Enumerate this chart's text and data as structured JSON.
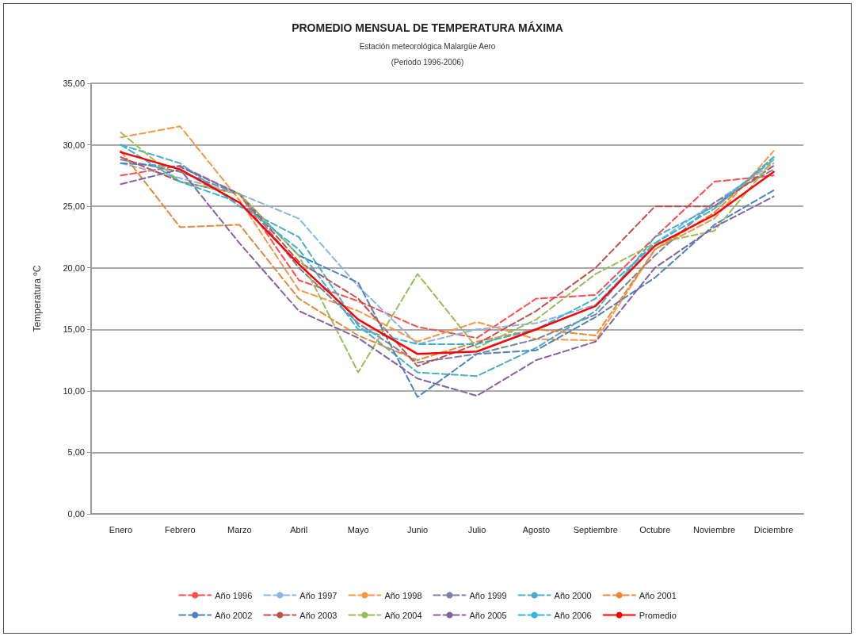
{
  "chart_data": {
    "type": "line",
    "title": "PROMEDIO MENSUAL DE TEMPERATURA MÁXIMA",
    "subtitle": "Estación meteorológica Malargüe Aero\n(Periodo 1996-2006)",
    "ylabel": "Temperatura ºC",
    "categories": [
      "Enero",
      "Febrero",
      "Marzo",
      "Abril",
      "Mayo",
      "Junio",
      "Julio",
      "Agosto",
      "Septiembre",
      "Octubre",
      "Noviembre",
      "Diciembre"
    ],
    "series": [
      {
        "name": "Año 1996",
        "color": "#ff4b4b",
        "line_style": "dashed",
        "values": [
          27.5,
          28.3,
          26.0,
          19.0,
          17.3,
          15.2,
          14.3,
          17.5,
          17.8,
          22.5,
          27.0,
          27.5
        ]
      },
      {
        "name": "Año 1997",
        "color": "#8eb4e3",
        "line_style": "dashed",
        "values": [
          28.5,
          27.3,
          26.0,
          24.0,
          18.5,
          13.8,
          15.0,
          15.5,
          17.0,
          22.0,
          25.3,
          28.5
        ]
      },
      {
        "name": "Año 1998",
        "color": "#f79646",
        "line_style": "dashed",
        "values": [
          30.6,
          31.5,
          25.5,
          18.2,
          16.5,
          14.0,
          15.6,
          14.2,
          14.1,
          21.5,
          24.0,
          29.5
        ]
      },
      {
        "name": "Año 1999",
        "color": "#7f7f9f",
        "line_style": "dashed",
        "values": [
          28.8,
          27.8,
          26.0,
          20.0,
          15.5,
          12.3,
          13.0,
          14.2,
          16.2,
          21.0,
          25.3,
          28.0
        ]
      },
      {
        "name": "Año 2000",
        "color": "#4bacc6",
        "line_style": "dashed",
        "values": [
          30.0,
          28.5,
          25.0,
          22.5,
          15.3,
          11.5,
          11.2,
          13.5,
          16.5,
          22.5,
          25.0,
          28.8
        ]
      },
      {
        "name": "Año 2001",
        "color": "#e8883a",
        "line_style": "dashed",
        "values": [
          29.5,
          23.3,
          23.5,
          17.5,
          14.5,
          12.5,
          14.0,
          15.0,
          14.5,
          21.5,
          24.5,
          29.0
        ]
      },
      {
        "name": "Año 2002",
        "color": "#4f81bd",
        "line_style": "dashed",
        "values": [
          28.5,
          28.2,
          26.0,
          21.0,
          18.8,
          9.5,
          13.0,
          13.3,
          16.0,
          19.2,
          23.5,
          26.3
        ]
      },
      {
        "name": "Año 2003",
        "color": "#c0504d",
        "line_style": "dashed",
        "values": [
          29.0,
          27.0,
          26.0,
          20.5,
          17.5,
          12.0,
          13.8,
          16.5,
          20.0,
          25.0,
          25.0,
          28.3
        ]
      },
      {
        "name": "Año 2004",
        "color": "#9bbb59",
        "line_style": "dashed",
        "values": [
          31.0,
          27.0,
          26.0,
          21.0,
          11.5,
          19.5,
          13.5,
          15.8,
          19.5,
          22.0,
          23.0,
          28.8
        ]
      },
      {
        "name": "Año 2005",
        "color": "#8064a2",
        "line_style": "dashed",
        "values": [
          26.8,
          28.0,
          22.0,
          16.5,
          14.3,
          11.0,
          9.6,
          12.5,
          14.0,
          20.0,
          23.3,
          25.8
        ]
      },
      {
        "name": "Año 2006",
        "color": "#31b6d8",
        "line_style": "dashed",
        "values": [
          30.0,
          27.0,
          25.3,
          21.5,
          15.0,
          13.8,
          13.8,
          15.0,
          17.5,
          22.0,
          24.8,
          29.0
        ]
      },
      {
        "name": "Promedio",
        "color": "#ff0000",
        "line_style": "solid",
        "values": [
          29.4,
          28.0,
          25.3,
          20.3,
          15.8,
          13.0,
          13.2,
          15.0,
          16.9,
          21.8,
          24.3,
          27.8
        ]
      }
    ],
    "ylim": [
      0,
      35
    ],
    "yticks": [
      {
        "value": 0,
        "label": "0,00"
      },
      {
        "value": 5,
        "label": "5,00"
      },
      {
        "value": 10,
        "label": "10,00"
      },
      {
        "value": 15,
        "label": "15,00"
      },
      {
        "value": 20,
        "label": "20,00"
      },
      {
        "value": 25,
        "label": "25,00"
      },
      {
        "value": 30,
        "label": "30,00"
      },
      {
        "value": 35,
        "label": "35,00"
      }
    ],
    "grid": "y",
    "legend": "bottom",
    "marker": "none"
  }
}
